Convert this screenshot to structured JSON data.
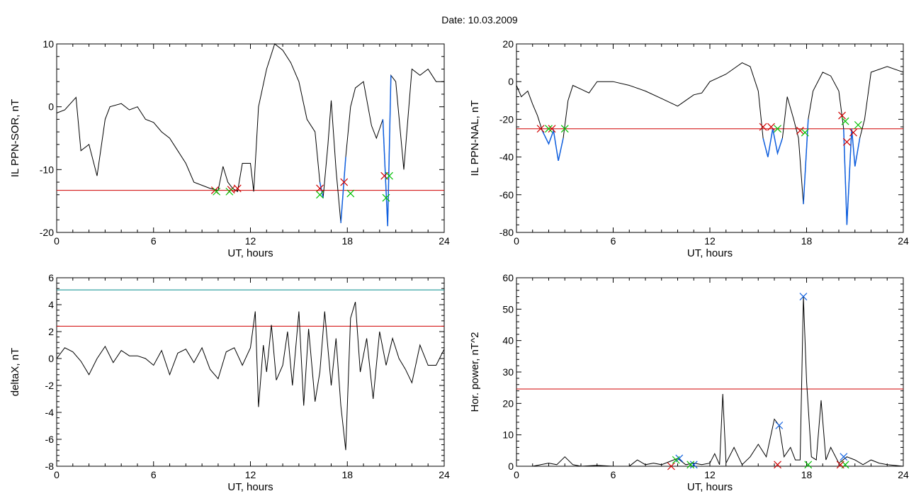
{
  "title": "Date:  10.03.2009",
  "colors": {
    "line": "#000000",
    "threshold": "#d00000",
    "upper_threshold": "#008b8b",
    "highlight": "#1060e0",
    "marker_red": "#d00000",
    "marker_green": "#00c000",
    "marker_blue": "#1060e0",
    "marker_darkred": "#a00000"
  },
  "chart_data": [
    {
      "type": "line",
      "xlabel": "UT, hours",
      "ylabel": "IL PPN-SOR, nT",
      "xlim": [
        0,
        24
      ],
      "ylim": [
        -20,
        10
      ],
      "xticks": [
        "0",
        "6",
        "12",
        "18",
        "24"
      ],
      "yticks": [
        "10",
        "0",
        "-10",
        "-20"
      ],
      "threshold": -13.3,
      "series": [
        {
          "x": [
            0,
            0.5,
            1.2,
            1.5,
            2.0,
            2.5,
            3.0,
            3.3,
            4.0,
            4.5,
            5.0,
            5.5,
            6.0,
            6.5,
            7.0,
            7.5,
            8.0,
            8.5,
            9.0,
            9.5,
            10.0,
            10.3,
            10.6,
            10.9,
            11.2,
            11.5,
            12.0,
            12.2,
            12.5,
            13.0,
            13.5,
            14.0,
            14.5,
            15.0,
            15.5,
            16.0,
            16.3,
            16.5,
            16.8,
            17.0,
            17.3,
            17.6,
            17.9,
            18.2,
            18.5,
            19.0,
            19.5,
            19.8,
            20.2,
            20.5,
            20.7,
            21.0,
            21.5,
            22.0,
            22.5,
            23.0,
            23.5,
            24.0
          ],
          "y": [
            -1,
            -0.5,
            1.5,
            -7,
            -6,
            -11,
            -2,
            0,
            0.5,
            -0.5,
            0,
            -2,
            -2.5,
            -4,
            -5,
            -7,
            -9,
            -12,
            -12.5,
            -13,
            -13.3,
            -9.5,
            -12,
            -13,
            -13.5,
            -9,
            -9,
            -13.5,
            0,
            6,
            10,
            9,
            7,
            4,
            -2,
            -4,
            -12,
            -14.5,
            -6,
            1,
            -10,
            -18.5,
            -8,
            0,
            3,
            4,
            -3,
            -5,
            -2,
            -19,
            5,
            4,
            -10,
            6,
            5,
            6,
            4,
            4
          ]
        }
      ],
      "threshold_crossings": {
        "red": [
          [
            9.8,
            -13.3
          ],
          [
            10.8,
            -13.2
          ],
          [
            11.2,
            -13
          ],
          [
            16.3,
            -13
          ],
          [
            17.8,
            -12
          ],
          [
            20.3,
            -11
          ]
        ],
        "green": [
          [
            9.9,
            -13.5
          ],
          [
            10.7,
            -13.5
          ],
          [
            16.3,
            -14
          ],
          [
            18.2,
            -13.8
          ],
          [
            20.4,
            -14.5
          ],
          [
            20.6,
            -11
          ]
        ]
      },
      "highlighted_segments": [
        [
          16.2,
          16.5
        ],
        [
          17.6,
          18.0
        ],
        [
          20.2,
          20.7
        ]
      ]
    },
    {
      "type": "line",
      "xlabel": "UT, hours",
      "ylabel": "IL PPN-NAL, nT",
      "xlim": [
        0,
        24
      ],
      "ylim": [
        -80,
        20
      ],
      "xticks": [
        "0",
        "6",
        "12",
        "18",
        "24"
      ],
      "yticks": [
        "20",
        "0",
        "-20",
        "-40",
        "-60",
        "-80"
      ],
      "threshold": -25,
      "series": [
        {
          "x": [
            0,
            0.3,
            0.7,
            1.0,
            1.3,
            1.6,
            2.0,
            2.3,
            2.6,
            2.9,
            3.2,
            3.5,
            4.0,
            4.5,
            5.0,
            6.0,
            7.0,
            8.0,
            9.0,
            10.0,
            10.5,
            11.0,
            11.5,
            12.0,
            12.5,
            13.0,
            13.5,
            14.0,
            14.5,
            15.0,
            15.3,
            15.6,
            15.9,
            16.2,
            16.5,
            16.8,
            17.2,
            17.5,
            17.8,
            18.1,
            18.4,
            19.0,
            19.5,
            20.0,
            20.3,
            20.5,
            20.8,
            21.0,
            21.3,
            21.6,
            22.0,
            23.0,
            24.0
          ],
          "y": [
            -2,
            -8,
            -5,
            -12,
            -18,
            -26,
            -33,
            -26,
            -42,
            -30,
            -10,
            -2,
            -4,
            -6,
            0,
            0,
            -2,
            -5,
            -9,
            -13,
            -10,
            -7,
            -6,
            0,
            2,
            4,
            7,
            10,
            8,
            -5,
            -30,
            -40,
            -25,
            -38,
            -30,
            -8,
            -20,
            -30,
            -65,
            -20,
            -5,
            5,
            3,
            -5,
            -25,
            -76,
            -25,
            -45,
            -30,
            -20,
            5,
            8,
            5
          ]
        }
      ],
      "threshold_crossings": {
        "red": [
          [
            1.5,
            -25
          ],
          [
            2.2,
            -25
          ],
          [
            15.3,
            -24
          ],
          [
            15.8,
            -24
          ],
          [
            17.6,
            -26
          ],
          [
            20.2,
            -18
          ],
          [
            20.5,
            -32
          ],
          [
            20.9,
            -27
          ]
        ],
        "green": [
          [
            2.0,
            -25
          ],
          [
            3.0,
            -25
          ],
          [
            16.2,
            -25
          ],
          [
            17.9,
            -27
          ],
          [
            20.4,
            -21
          ],
          [
            21.2,
            -23
          ]
        ]
      },
      "highlighted_segments": [
        [
          1.5,
          3.0
        ],
        [
          15.3,
          16.5
        ],
        [
          17.6,
          18.1
        ],
        [
          20.2,
          21.4
        ]
      ]
    },
    {
      "type": "line",
      "xlabel": "UT, hours",
      "ylabel": "deltaX, nT",
      "xlim": [
        0,
        24
      ],
      "ylim": [
        -8,
        6
      ],
      "xticks": [
        "0",
        "6",
        "12",
        "18",
        "24"
      ],
      "yticks": [
        "6",
        "4",
        "2",
        "0",
        "-2",
        "-4",
        "-6",
        "-8"
      ],
      "threshold": 2.4,
      "upper_threshold": 5.1,
      "series": [
        {
          "x": [
            0,
            0.5,
            1.0,
            1.5,
            2.0,
            2.5,
            3.0,
            3.5,
            4.0,
            4.5,
            5.0,
            5.5,
            6.0,
            6.5,
            7.0,
            7.5,
            8.0,
            8.5,
            9.0,
            9.5,
            10.0,
            10.5,
            11.0,
            11.5,
            12.0,
            12.3,
            12.5,
            12.8,
            13.0,
            13.3,
            13.6,
            14.0,
            14.3,
            14.6,
            15.0,
            15.3,
            15.6,
            16.0,
            16.3,
            16.6,
            17.0,
            17.3,
            17.6,
            17.9,
            18.2,
            18.5,
            18.8,
            19.2,
            19.6,
            20.0,
            20.4,
            20.8,
            21.2,
            21.6,
            22.0,
            22.5,
            23.0,
            23.5,
            24.0
          ],
          "y": [
            0,
            0.8,
            0.5,
            -0.2,
            -1.2,
            0,
            0.9,
            -0.3,
            0.6,
            0.2,
            0.2,
            0,
            -0.5,
            0.6,
            -1.2,
            0.4,
            0.7,
            -0.3,
            0.8,
            -0.8,
            -1.5,
            0.5,
            0.8,
            -0.5,
            0.8,
            3.5,
            -3.6,
            1,
            -1,
            2.5,
            -1.6,
            -0.5,
            2,
            -2,
            3.5,
            -3.5,
            2.2,
            -3.2,
            -1,
            3.5,
            -2,
            1.5,
            -3.5,
            -6.8,
            3,
            4.2,
            -1,
            1.5,
            -3,
            2,
            -0.5,
            1.5,
            0,
            -0.8,
            -1.8,
            1,
            -0.5,
            -0.5,
            0.7
          ]
        }
      ]
    },
    {
      "type": "line",
      "xlabel": "UT, hours",
      "ylabel": "Hor. power, nT^2",
      "xlim": [
        0,
        24
      ],
      "ylim": [
        0,
        60
      ],
      "xticks": [
        "0",
        "6",
        "12",
        "18",
        "24"
      ],
      "yticks": [
        "60",
        "50",
        "40",
        "30",
        "20",
        "10",
        "0"
      ],
      "threshold": 24.6,
      "series": [
        {
          "x": [
            0,
            1,
            2,
            2.5,
            3,
            3.5,
            4,
            5,
            6,
            7,
            7.5,
            8,
            8.5,
            9,
            9.5,
            10,
            10.5,
            11,
            11.5,
            12,
            12.3,
            12.6,
            12.8,
            13,
            13.5,
            14,
            14.5,
            15,
            15.5,
            16,
            16.3,
            16.6,
            17,
            17.3,
            17.6,
            17.8,
            18.0,
            18.3,
            18.6,
            18.9,
            19.2,
            19.5,
            20,
            20.5,
            21,
            21.5,
            22,
            22.5,
            23,
            24
          ],
          "y": [
            0,
            0,
            1,
            0.5,
            3,
            0.5,
            0,
            0.3,
            0,
            0,
            2,
            0.5,
            1,
            0.5,
            1.5,
            2.5,
            0.5,
            1,
            0.5,
            1,
            4,
            0.5,
            23,
            1,
            6,
            0.5,
            3,
            7,
            3,
            15,
            13,
            3,
            6,
            2,
            2,
            54,
            27,
            3,
            2,
            21,
            2,
            6,
            1,
            3,
            2,
            0.5,
            2,
            1,
            0.5,
            0
          ]
        }
      ],
      "markers": {
        "blue": [
          [
            17.8,
            54
          ],
          [
            16.3,
            13
          ],
          [
            10.1,
            2.5
          ],
          [
            11.0,
            0.5
          ],
          [
            20.3,
            3
          ]
        ],
        "green": [
          [
            9.9,
            2
          ],
          [
            10.8,
            0.5
          ],
          [
            18.1,
            0.5
          ],
          [
            20.4,
            0.5
          ]
        ],
        "red": [
          [
            9.6,
            0
          ],
          [
            16.2,
            0.5
          ],
          [
            20.1,
            0.5
          ]
        ]
      }
    }
  ]
}
